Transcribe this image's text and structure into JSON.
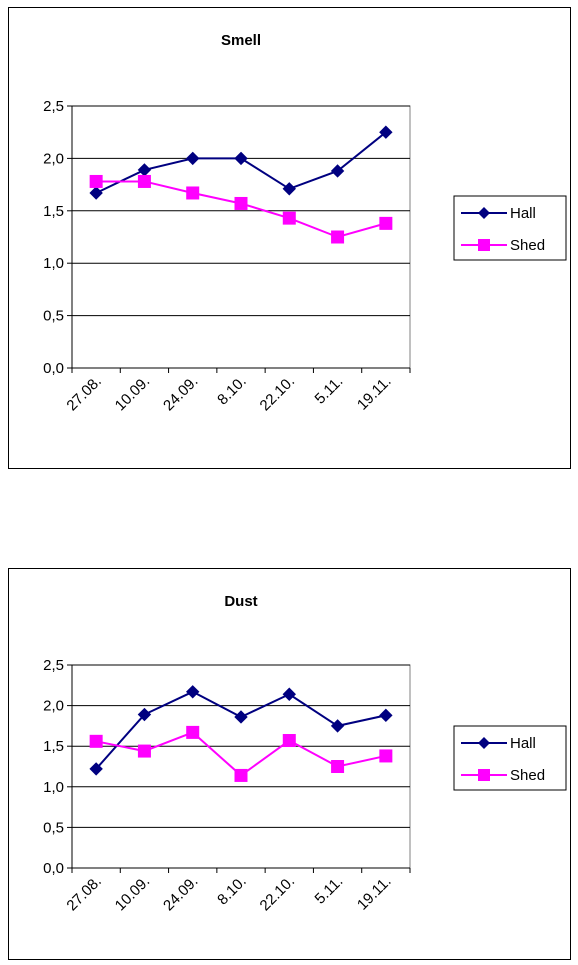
{
  "chart_data": [
    {
      "type": "line",
      "title": "Smell",
      "categories": [
        "27.08.",
        "10.09.",
        "24.09.",
        "8.10.",
        "22.10.",
        "5.11.",
        "19.11."
      ],
      "series": [
        {
          "name": "Hall",
          "color": "#000080",
          "marker": "diamond",
          "values": [
            1.67,
            1.89,
            2.0,
            2.0,
            1.71,
            1.88,
            2.25
          ]
        },
        {
          "name": "Shed",
          "color": "#FF00FF",
          "marker": "square",
          "values": [
            1.78,
            1.78,
            1.67,
            1.57,
            1.43,
            1.25,
            1.38
          ]
        }
      ],
      "yticks": [
        "0,0",
        "0,5",
        "1,0",
        "1,5",
        "2,0",
        "2,5"
      ],
      "ylim": [
        0,
        2.5
      ],
      "grid": true,
      "legend": "right"
    },
    {
      "type": "line",
      "title": "Dust",
      "categories": [
        "27.08.",
        "10.09.",
        "24.09.",
        "8.10.",
        "22.10.",
        "5.11.",
        "19.11."
      ],
      "series": [
        {
          "name": "Hall",
          "color": "#000080",
          "marker": "diamond",
          "values": [
            1.22,
            1.89,
            2.17,
            1.86,
            2.14,
            1.75,
            1.88
          ]
        },
        {
          "name": "Shed",
          "color": "#FF00FF",
          "marker": "square",
          "values": [
            1.56,
            1.44,
            1.67,
            1.14,
            1.57,
            1.25,
            1.38
          ]
        }
      ],
      "yticks": [
        "0,0",
        "0,5",
        "1,0",
        "1,5",
        "2,0",
        "2,5"
      ],
      "ylim": [
        0,
        2.5
      ],
      "grid": true,
      "legend": "right"
    }
  ]
}
